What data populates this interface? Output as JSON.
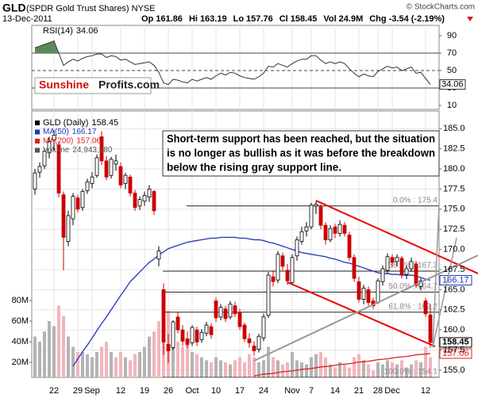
{
  "chart_data": {
    "type": "candlestick",
    "title": "GLD",
    "subtitle": "(SPDR Gold Trust Shares) NYSE",
    "source": "© StockCharts.com",
    "date": "13-Dec-2011",
    "quote": [
      {
        "label": "Op",
        "value": 161.86
      },
      {
        "label": "Hi",
        "value": 163.19
      },
      {
        "label": "Lo",
        "value": 157.76
      },
      {
        "label": "Cl",
        "value": 158.45
      },
      {
        "label": "Vol",
        "value": "24.9M"
      },
      {
        "label": "Chg",
        "value": "-3.54 (-2.19%)"
      }
    ],
    "brand": {
      "first": "Sunshine",
      "second": "Profits.com"
    },
    "annotation": [
      "Short-term support has been reached, but the situation",
      "is no longer as bullish as it was before the breakdown",
      "below the rising gray support line."
    ],
    "categories": [
      null,
      null,
      null,
      null,
      "22",
      null,
      null,
      null,
      null,
      "29",
      null,
      null,
      "Sep",
      null,
      null,
      null,
      null,
      null,
      "12",
      null,
      null,
      null,
      null,
      "19",
      null,
      null,
      null,
      null,
      "26",
      null,
      null,
      null,
      null,
      "Oct",
      null,
      null,
      null,
      null,
      "10",
      null,
      null,
      null,
      null,
      "17",
      null,
      null,
      null,
      null,
      "24",
      null,
      null,
      null,
      null,
      null,
      "Nov",
      null,
      null,
      null,
      "7",
      null,
      null,
      null,
      null,
      "14",
      null,
      null,
      null,
      null,
      "21",
      null,
      null,
      null,
      "28",
      null,
      null,
      "Dec",
      null,
      null,
      null,
      null,
      null,
      null,
      "12",
      null
    ],
    "candles": {
      "name": "GLD (Daily)",
      "up_color": "#ffffff",
      "down_color": "#cc0000",
      "open": [
        177.5,
        179.6,
        180.4,
        182.0,
        183.6,
        183.0,
        176.8,
        171.0,
        173.8,
        176.4,
        175.2,
        177.3,
        178.2,
        179.2,
        184.0,
        181.0,
        179.2,
        180.6,
        180.3,
        178.2,
        179.0,
        177.0,
        175.4,
        176.0,
        176.5,
        177.2,
        168.8,
        165.0,
        158.2,
        157.8,
        161.6,
        160.0,
        158.9,
        158.4,
        160.0,
        158.8,
        159.6,
        160.4,
        163.6,
        161.6,
        162.6,
        161.6,
        163.0,
        162.2,
        160.6,
        158.9,
        158.0,
        157.6,
        159.0,
        161.8,
        166.6,
        166.2,
        169.2,
        167.4,
        165.9,
        169.2,
        171.0,
        172.3,
        172.8,
        175.4,
        175.3,
        173.0,
        171.2,
        172.8,
        172.0,
        173.0,
        171.8,
        169.0,
        166.0,
        163.8,
        165.0,
        163.6,
        163.4,
        166.0,
        167.4,
        169.0,
        168.5,
        168.9,
        166.9,
        167.6,
        168.2,
        165.4,
        163.6,
        161.86
      ],
      "high": [
        180.0,
        180.8,
        182.6,
        184.0,
        184.8,
        183.4,
        177.2,
        174.8,
        177.0,
        176.8,
        177.5,
        178.8,
        179.6,
        181.8,
        184.7,
        181.6,
        181.5,
        181.8,
        180.8,
        179.5,
        179.3,
        177.4,
        176.6,
        177.2,
        178.0,
        177.4,
        170.4,
        165.8,
        159.5,
        161.2,
        162.2,
        160.6,
        159.8,
        160.6,
        160.4,
        160.1,
        161.0,
        160.8,
        164.0,
        163.2,
        163.0,
        163.6,
        163.5,
        162.6,
        160.9,
        159.6,
        158.6,
        159.5,
        162.0,
        167.2,
        167.4,
        169.8,
        169.6,
        168.2,
        169.4,
        171.6,
        172.8,
        173.4,
        175.8,
        176.0,
        175.6,
        173.4,
        173.0,
        173.2,
        173.6,
        173.4,
        172.2,
        169.4,
        166.6,
        165.6,
        165.4,
        164.0,
        166.4,
        168.0,
        169.5,
        169.4,
        169.4,
        169.2,
        168.0,
        169.0,
        168.6,
        166.4,
        164.0,
        163.19
      ],
      "low": [
        176.8,
        178.9,
        180.0,
        181.3,
        182.3,
        176.5,
        167.4,
        170.4,
        173.0,
        174.6,
        174.8,
        176.9,
        177.6,
        178.9,
        180.5,
        178.6,
        178.8,
        179.8,
        177.6,
        177.5,
        176.6,
        174.8,
        174.9,
        175.4,
        175.9,
        174.3,
        167.9,
        156.9,
        155.9,
        157.5,
        159.6,
        158.0,
        157.8,
        158.0,
        158.0,
        158.4,
        159.2,
        158.9,
        161.0,
        161.2,
        161.0,
        161.3,
        161.6,
        160.0,
        158.5,
        157.8,
        156.8,
        157.2,
        158.6,
        161.5,
        165.4,
        165.8,
        167.4,
        165.6,
        165.6,
        168.6,
        170.6,
        171.6,
        172.5,
        174.4,
        172.5,
        170.6,
        170.9,
        171.4,
        171.6,
        171.6,
        168.6,
        166.0,
        163.4,
        163.2,
        163.0,
        162.6,
        163.2,
        165.5,
        167.0,
        167.8,
        167.9,
        166.4,
        166.3,
        167.2,
        165.2,
        164.9,
        161.6,
        157.76
      ],
      "close": [
        179.5,
        180.3,
        182.2,
        183.4,
        184.2,
        177.0,
        171.5,
        174.2,
        176.6,
        175.0,
        177.2,
        178.4,
        179.0,
        181.4,
        181.0,
        179.0,
        181.2,
        181.0,
        178.0,
        179.2,
        177.0,
        175.2,
        176.2,
        176.7,
        177.5,
        174.8,
        169.8,
        158.5,
        157.4,
        161.0,
        160.0,
        158.6,
        158.2,
        160.3,
        158.5,
        159.7,
        160.6,
        159.4,
        161.5,
        162.8,
        161.4,
        163.2,
        162.0,
        160.4,
        158.9,
        158.4,
        157.4,
        159.2,
        161.6,
        166.8,
        166.0,
        169.4,
        167.9,
        166.1,
        169.0,
        171.2,
        172.2,
        172.8,
        175.5,
        175.6,
        173.0,
        171.2,
        172.6,
        172.0,
        173.1,
        172.0,
        169.0,
        166.4,
        163.8,
        165.2,
        163.4,
        163.0,
        166.1,
        167.6,
        169.1,
        168.4,
        169.0,
        166.9,
        167.6,
        168.5,
        165.5,
        166.1,
        162.0,
        158.45
      ]
    },
    "series": [
      {
        "name": "MA(50)",
        "color": "#2233bb",
        "values": [
          null,
          null,
          null,
          null,
          null,
          null,
          null,
          null,
          155.5,
          156.4,
          157.3,
          158.1,
          159.0,
          159.9,
          160.8,
          161.6,
          162.5,
          163.4,
          164.3,
          165.1,
          166.0,
          166.6,
          167.2,
          167.8,
          168.4,
          168.8,
          169.3,
          169.7,
          170.1,
          170.3,
          170.5,
          170.7,
          170.9,
          171.0,
          171.1,
          171.2,
          171.3,
          171.4,
          171.4,
          171.5,
          171.5,
          171.5,
          171.5,
          171.4,
          171.4,
          171.3,
          171.2,
          171.2,
          171.1,
          170.9,
          170.8,
          170.6,
          170.4,
          170.2,
          170.0,
          169.8,
          169.6,
          169.5,
          169.4,
          169.3,
          169.2,
          169.1,
          168.9,
          168.8,
          168.6,
          168.4,
          168.3,
          168.1,
          167.9,
          167.7,
          167.5,
          167.3,
          167.1,
          167.0,
          167.0,
          166.9,
          166.9,
          166.8,
          166.8,
          166.8,
          166.7,
          166.5,
          166.3,
          166.17
        ]
      },
      {
        "name": "MA(200)",
        "color": "#dd2222",
        "values": [
          null,
          null,
          null,
          null,
          null,
          null,
          null,
          null,
          null,
          null,
          null,
          null,
          null,
          null,
          null,
          null,
          null,
          null,
          null,
          null,
          null,
          null,
          null,
          null,
          null,
          null,
          null,
          null,
          null,
          null,
          null,
          null,
          null,
          null,
          null,
          null,
          null,
          null,
          null,
          null,
          null,
          null,
          null,
          null,
          null,
          null,
          154.3,
          154.4,
          154.5,
          154.55,
          154.6,
          154.7,
          154.8,
          154.85,
          154.9,
          155.0,
          155.1,
          155.15,
          155.2,
          155.3,
          155.4,
          155.45,
          155.5,
          155.6,
          155.7,
          155.75,
          155.8,
          155.9,
          156.0,
          156.05,
          156.1,
          156.2,
          156.3,
          156.35,
          156.4,
          156.5,
          156.6,
          156.65,
          156.7,
          156.8,
          156.9,
          156.95,
          157.0,
          157.06
        ]
      }
    ],
    "volume": {
      "name": "Volume",
      "last_label": "24,943,380",
      "up_color": "#b4b4b4",
      "down_color": "#f3b5bd",
      "values": [
        45,
        40,
        50,
        60,
        55,
        75,
        65,
        45,
        35,
        30,
        30,
        28,
        25,
        30,
        35,
        40,
        30,
        25,
        30,
        25,
        22,
        28,
        30,
        35,
        45,
        50,
        60,
        80,
        70,
        45,
        40,
        35,
        38,
        30,
        28,
        25,
        22,
        20,
        25,
        22,
        20,
        18,
        22,
        25,
        20,
        28,
        25,
        20,
        22,
        35,
        25,
        22,
        18,
        20,
        30,
        22,
        20,
        18,
        25,
        28,
        30,
        25,
        18,
        15,
        20,
        18,
        15,
        25,
        28,
        22,
        18,
        12,
        20,
        18,
        22,
        20,
        18,
        22,
        15,
        18,
        22,
        20,
        35,
        24.94338
      ],
      "ylim": [
        5.4,
        263.8
      ],
      "yticks": [
        {
          "value": 20,
          "label": "20M"
        },
        {
          "value": 40,
          "label": "40M"
        },
        {
          "value": 60,
          "label": "60M"
        },
        {
          "value": 80,
          "label": "80M"
        }
      ]
    },
    "ylim": [
      154.1,
      187.2
    ],
    "yticks": [
      {
        "value": 155,
        "label": "155.0"
      },
      {
        "value": 157.5,
        "label": "157.5"
      },
      {
        "value": 160,
        "label": "160.0"
      },
      {
        "value": 162.5,
        "label": "162.5"
      },
      {
        "value": 165,
        "label": "165.0"
      },
      {
        "value": 167.5,
        "label": "167.5"
      },
      {
        "value": 170,
        "label": "170.0"
      },
      {
        "value": 172.5,
        "label": "172.5"
      },
      {
        "value": 175,
        "label": "175.0"
      },
      {
        "value": 177.5,
        "label": "177.5"
      },
      {
        "value": 180,
        "label": "180.0"
      },
      {
        "value": 182.5,
        "label": "182.5"
      },
      {
        "value": 185,
        "label": "185.0"
      }
    ],
    "grid": true,
    "fib_levels": [
      {
        "label": "0.0% : 175.4",
        "value": 175.4
      },
      {
        "label": "38.2% : 167.3",
        "value": 167.3
      },
      {
        "label": "50.0% : 164.7",
        "value": 164.7
      },
      {
        "label": "61.8% : 162.2",
        "value": 162.2
      },
      {
        "label": "100.0% : 154.1",
        "value": 154.1
      }
    ],
    "rsi": {
      "name": "RSI(14)",
      "color": "#333333",
      "fill_color": "#5a8a5a",
      "ylim": [
        5.5,
        101.8
      ],
      "yticks": [
        90,
        70,
        50,
        30,
        10
      ],
      "overbought": 70,
      "midline": 50,
      "oversold": 30,
      "values": [
        76,
        78,
        80,
        82,
        84,
        70,
        56,
        60,
        63,
        61,
        64,
        66,
        67,
        69,
        69,
        65,
        67,
        66,
        62,
        63,
        60,
        57,
        58,
        59,
        60,
        56,
        48,
        36,
        34,
        40,
        39,
        37,
        36,
        40,
        38,
        40,
        42,
        40,
        44,
        47,
        45,
        48,
        47,
        44,
        42,
        41,
        40,
        43,
        47,
        55,
        54,
        58,
        56,
        54,
        58,
        61,
        63,
        63,
        67,
        67,
        62,
        58,
        60,
        58,
        60,
        58,
        52,
        47,
        43,
        46,
        44,
        43,
        49,
        52,
        55,
        53,
        54,
        50,
        52,
        54,
        47,
        48,
        41,
        34.06
      ]
    }
  }
}
